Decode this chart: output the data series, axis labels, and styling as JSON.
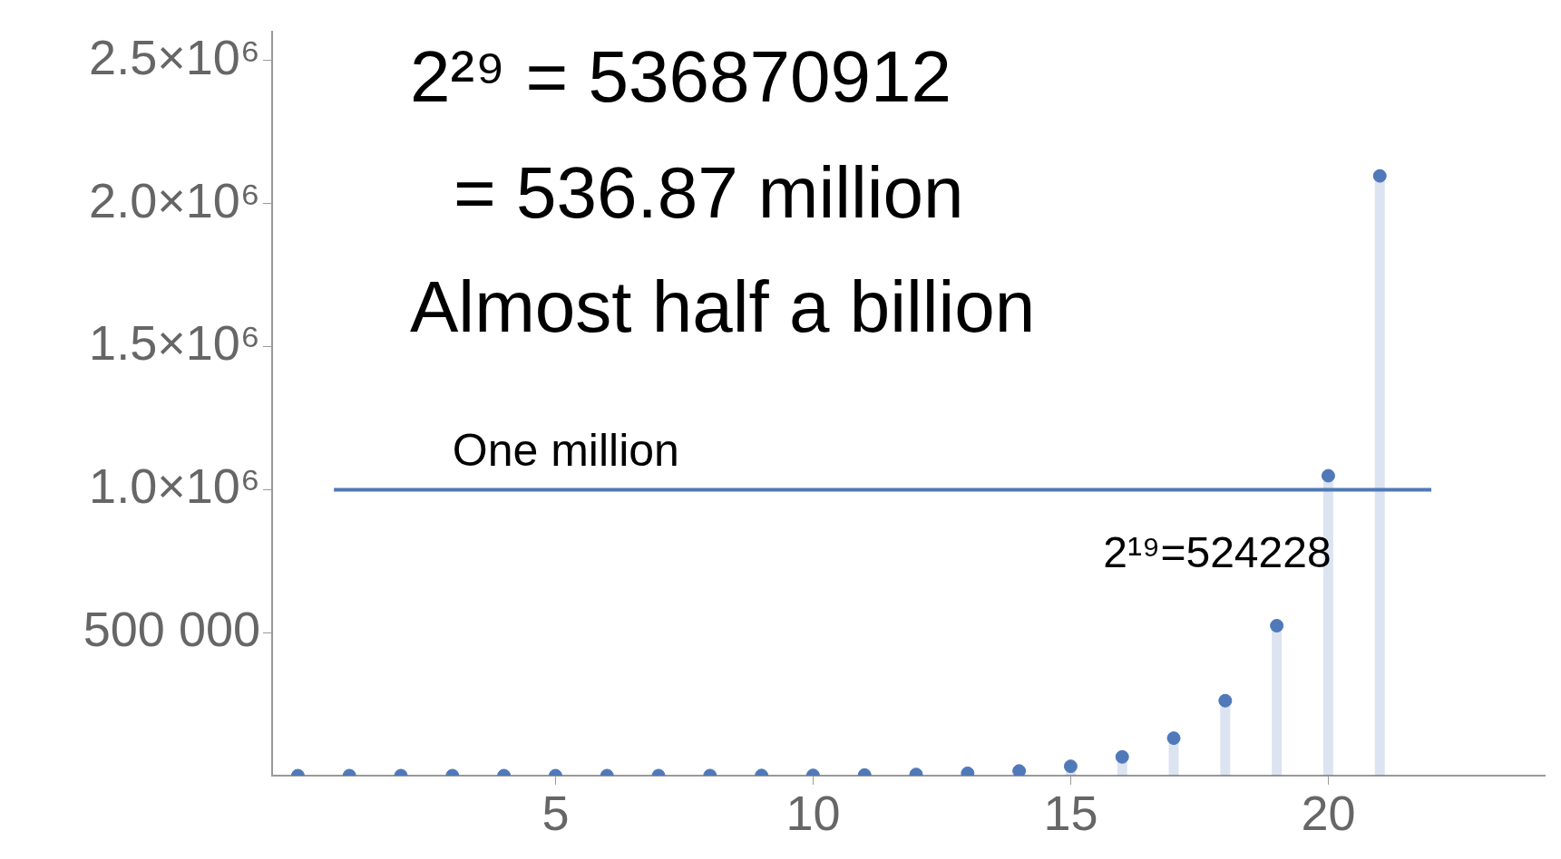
{
  "chart_data": {
    "type": "lollipop",
    "x": [
      0,
      1,
      2,
      3,
      4,
      5,
      6,
      7,
      8,
      9,
      10,
      11,
      12,
      13,
      14,
      15,
      16,
      17,
      18,
      19,
      20,
      21
    ],
    "series": [
      {
        "color": "#4f79b8",
        "values": [
          1,
          2,
          4,
          8,
          16,
          32,
          64,
          128,
          256,
          512,
          1024,
          2048,
          4096,
          8192,
          16384,
          32768,
          65536,
          131072,
          262144,
          524288,
          1048576,
          2097152
        ]
      }
    ],
    "xlim": [
      -0.5,
      24.2
    ],
    "xticks": [
      5,
      10,
      15,
      20
    ],
    "ylim": [
      0,
      2600000
    ],
    "yticks": [
      {
        "value": 500000,
        "label": "500 000"
      },
      {
        "value": 1000000,
        "label": "1.0×10⁶"
      },
      {
        "value": 1500000,
        "label": "1.5×10⁶"
      },
      {
        "value": 2000000,
        "label": "2.0×10⁶"
      },
      {
        "value": 2500000,
        "label": "2.5×10⁶"
      }
    ],
    "ref_lines": [
      {
        "axis": "y",
        "value": 1000000,
        "label": "One million",
        "color": "#4f79b8"
      }
    ],
    "annotations": [
      "2²⁹ = 536870912",
      "= 536.87 million",
      "Almost half a billion",
      {
        "text": "2¹⁹=524228",
        "x": 19,
        "y": 524288
      }
    ],
    "grid": false,
    "legend": false,
    "marker": "circle"
  }
}
